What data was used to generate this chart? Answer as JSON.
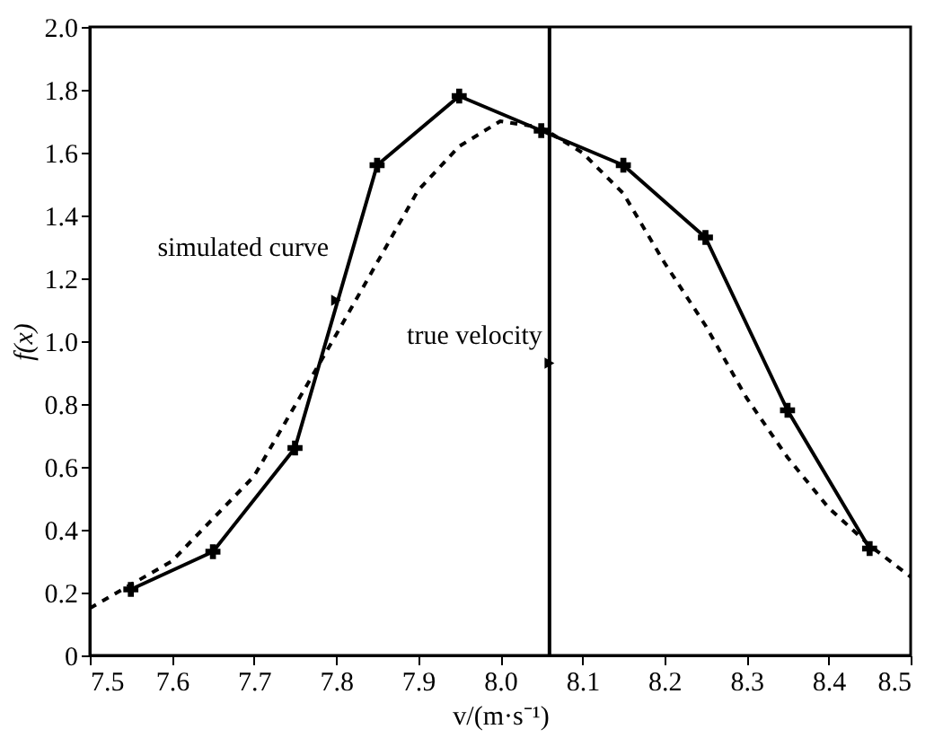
{
  "chart_data": {
    "type": "line",
    "xlabel": "v/(m·s⁻¹)",
    "ylabel": "f(x)",
    "xlim": [
      7.5,
      8.5
    ],
    "ylim": [
      0,
      2.0
    ],
    "xticks": [
      7.5,
      7.6,
      7.7,
      7.8,
      7.9,
      {
        "value": 8,
        "label": "8.0"
      },
      8.1,
      8.2,
      8.3,
      8.4,
      8.5
    ],
    "yticks": [
      0,
      0.2,
      0.4,
      0.6,
      0.8,
      {
        "value": 1,
        "label": "1.0"
      },
      1.2,
      1.4,
      1.6,
      1.8,
      {
        "value": 2,
        "label": "2.0"
      }
    ],
    "grid": false,
    "series": [
      {
        "color": "#000000",
        "line_style": "solid",
        "marker": "cross",
        "x": [
          7.55,
          7.65,
          7.75,
          7.85,
          7.95,
          8.05,
          8.15,
          8.25,
          8.35,
          8.45
        ],
        "values": [
          0.21,
          0.33,
          0.66,
          1.56,
          1.78,
          1.67,
          1.56,
          1.33,
          0.78,
          0.34
        ]
      },
      {
        "color": "#000000",
        "line_style": "dashed",
        "marker": "none",
        "x": [
          7.5,
          7.6,
          7.7,
          7.8,
          7.85,
          7.9,
          7.95,
          8.0,
          8.05,
          8.1,
          8.15,
          8.2,
          8.25,
          8.3,
          8.35,
          8.4,
          8.45,
          8.5
        ],
        "values": [
          0.15,
          0.3,
          0.57,
          1.02,
          1.25,
          1.48,
          1.62,
          1.7,
          1.68,
          1.6,
          1.47,
          1.25,
          1.05,
          0.82,
          0.63,
          0.47,
          0.35,
          0.25
        ]
      }
    ],
    "ref_lines": [
      {
        "axis": "x",
        "value": 8.06,
        "color": "#000000"
      }
    ],
    "annotations": [
      {
        "text": "simulated curve",
        "x": 7.8,
        "y": 1.13
      },
      {
        "text": "true velocity",
        "x": 8.06,
        "y": 0.93
      }
    ]
  }
}
